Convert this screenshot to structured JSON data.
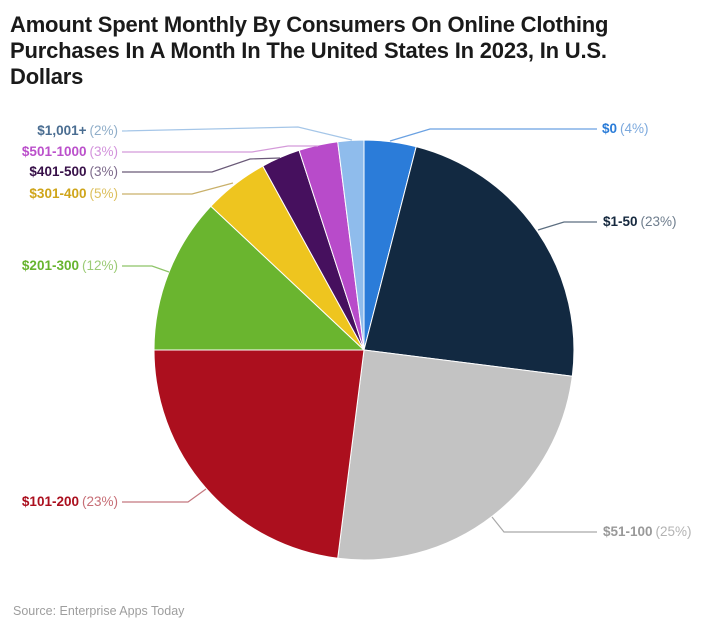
{
  "header": {
    "title_lines": [
      "Amount Spent Monthly By Consumers On Online Clothing",
      "Purchases In A Month In The United States In 2023, In U.S.",
      "Dollars"
    ]
  },
  "footer": {
    "source": "Source: Enterprise Apps Today"
  },
  "chart_data": {
    "type": "pie",
    "title": "Amount Spent Monthly By Consumers On Online Clothing Purchases In A Month In The United States In 2023, In U.S. Dollars",
    "unit": "percent",
    "start_angle_deg": 0,
    "direction": "clockwise",
    "legend_position": "callout-labels",
    "source": "Enterprise Apps Today",
    "slices": [
      {
        "label": "$0",
        "value": 4,
        "range_text": "$0",
        "pct_text": "(4%)",
        "color": "#2b7cd9",
        "label_color": "#2a7cd8",
        "pct_color": "#7ca9dd",
        "line_color": "#6aa1e2",
        "side": "right"
      },
      {
        "label": "$1-50",
        "value": 23,
        "range_text": "$1-50",
        "pct_text": "(23%)",
        "color": "#122941",
        "label_color": "#16293f",
        "pct_color": "#6e7d8d",
        "line_color": "#5c6e80",
        "side": "right"
      },
      {
        "label": "$51-100",
        "value": 25,
        "range_text": "$51-100",
        "pct_text": "(25%)",
        "color": "#c3c3c3",
        "label_color": "#999999",
        "pct_color": "#b3b3b3",
        "line_color": "#a9a9a9",
        "side": "right"
      },
      {
        "label": "$101-200",
        "value": 23,
        "range_text": "$101-200",
        "pct_text": "(23%)",
        "color": "#ac0f1e",
        "label_color": "#ab0f1e",
        "pct_color": "#c76e76",
        "line_color": "#c4787f",
        "side": "left"
      },
      {
        "label": "$201-300",
        "value": 12,
        "range_text": "$201-300",
        "pct_text": "(12%)",
        "color": "#6ab52f",
        "label_color": "#67b42e",
        "pct_color": "#9ccb76",
        "line_color": "#8ec468",
        "side": "left"
      },
      {
        "label": "$301-400",
        "value": 5,
        "range_text": "$301-400",
        "pct_text": "(5%)",
        "color": "#eec51f",
        "label_color": "#cfa51a",
        "pct_color": "#ddc05e",
        "line_color": "#c9b06a",
        "side": "left"
      },
      {
        "label": "$401-500",
        "value": 3,
        "range_text": "$401-500",
        "pct_text": "(3%)",
        "color": "#46105e",
        "label_color": "#371048",
        "pct_color": "#7e6b8c",
        "line_color": "#6a5a78",
        "side": "left"
      },
      {
        "label": "$501-1000",
        "value": 3,
        "range_text": "$501-1000",
        "pct_text": "(3%)",
        "color": "#b84bca",
        "label_color": "#bb50cb",
        "pct_color": "#d393dc",
        "line_color": "#d49ad9",
        "side": "left"
      },
      {
        "label": "$1,001+",
        "value": 2,
        "range_text": "$1,001+",
        "pct_text": "(2%)",
        "color": "#8fbcec",
        "label_color": "#4a6d91",
        "pct_color": "#90aec9",
        "line_color": "#a5c6e8",
        "side": "left"
      }
    ]
  }
}
